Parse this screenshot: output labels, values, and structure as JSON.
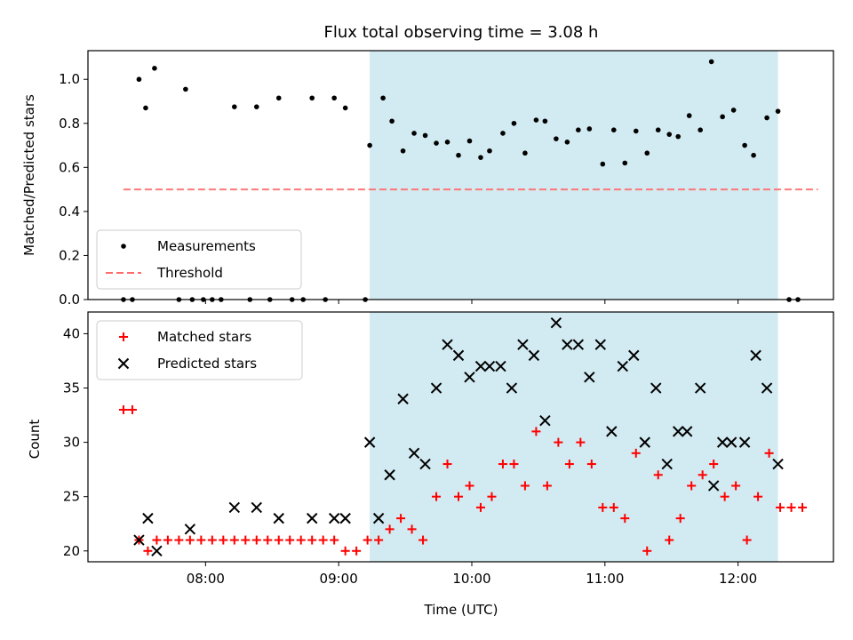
{
  "chart_data": {
    "title": "Flux total observing time = 3.08 h",
    "xlabel": "Time (UTC)",
    "x_ticks": [
      "08:00",
      "09:00",
      "10:00",
      "11:00",
      "12:00"
    ],
    "x_tick_minutes": [
      480,
      540,
      600,
      660,
      720
    ],
    "xlim_minutes": [
      427,
      763
    ],
    "shaded_interval": {
      "start": "09:14",
      "end": "12:18",
      "start_minutes": 554,
      "end_minutes": 738,
      "color": "#add8e6"
    },
    "panels": [
      {
        "type": "scatter",
        "ylabel": "Matched/Predicted stars",
        "ylim": [
          0,
          1.13
        ],
        "y_ticks": [
          "0.0",
          "0.2",
          "0.4",
          "0.6",
          "0.8",
          "1.0"
        ],
        "y_tick_values": [
          0,
          0.2,
          0.4,
          0.6,
          0.8,
          1.0
        ],
        "legend_position": "lower-left",
        "series": [
          {
            "name": "Measurements",
            "marker": "dot",
            "color": "#000000",
            "points": [
              [
                443,
                0
              ],
              [
                447,
                0
              ],
              [
                450,
                1.0
              ],
              [
                453,
                0.87
              ],
              [
                457,
                1.05
              ],
              [
                468,
                0
              ],
              [
                471,
                0.955
              ],
              [
                474,
                0
              ],
              [
                479,
                0
              ],
              [
                483,
                0
              ],
              [
                487,
                0
              ],
              [
                493,
                0.875
              ],
              [
                500,
                0
              ],
              [
                503,
                0.875
              ],
              [
                509,
                0
              ],
              [
                513,
                0.915
              ],
              [
                519,
                0
              ],
              [
                524,
                0
              ],
              [
                528,
                0.915
              ],
              [
                534,
                0
              ],
              [
                538,
                0.915
              ],
              [
                543,
                0.87
              ],
              [
                552,
                0
              ],
              [
                554,
                0.7
              ],
              [
                560,
                0.915
              ],
              [
                564,
                0.81
              ],
              [
                569,
                0.675
              ],
              [
                574,
                0.755
              ],
              [
                579,
                0.745
              ],
              [
                584,
                0.71
              ],
              [
                589,
                0.715
              ],
              [
                594,
                0.655
              ],
              [
                599,
                0.72
              ],
              [
                604,
                0.645
              ],
              [
                608,
                0.675
              ],
              [
                614,
                0.755
              ],
              [
                619,
                0.8
              ],
              [
                624,
                0.665
              ],
              [
                629,
                0.815
              ],
              [
                633,
                0.81
              ],
              [
                638,
                0.73
              ],
              [
                643,
                0.715
              ],
              [
                648,
                0.77
              ],
              [
                653,
                0.775
              ],
              [
                659,
                0.615
              ],
              [
                664,
                0.77
              ],
              [
                669,
                0.62
              ],
              [
                674,
                0.765
              ],
              [
                679,
                0.665
              ],
              [
                684,
                0.77
              ],
              [
                689,
                0.75
              ],
              [
                693,
                0.74
              ],
              [
                698,
                0.835
              ],
              [
                703,
                0.77
              ],
              [
                708,
                1.08
              ],
              [
                713,
                0.83
              ],
              [
                718,
                0.86
              ],
              [
                723,
                0.7
              ],
              [
                727,
                0.655
              ],
              [
                733,
                0.825
              ],
              [
                738,
                0.855
              ],
              [
                743,
                0
              ],
              [
                747,
                0
              ]
            ]
          },
          {
            "name": "Threshold",
            "style": "dashed",
            "color": "#ff6b6b",
            "x_range": [
              443,
              756
            ],
            "value": 0.5
          }
        ]
      },
      {
        "type": "scatter",
        "ylabel": "Count",
        "ylim": [
          19,
          42
        ],
        "y_ticks": [
          "20",
          "25",
          "30",
          "35",
          "40"
        ],
        "y_tick_values": [
          20,
          25,
          30,
          35,
          40
        ],
        "legend_position": "top-left",
        "series": [
          {
            "name": "Matched stars",
            "marker": "plus",
            "color": "#ff0000",
            "points": [
              [
                443,
                33
              ],
              [
                447,
                33
              ],
              [
                450,
                21
              ],
              [
                454,
                20
              ],
              [
                458,
                21
              ],
              [
                463,
                21
              ],
              [
                468,
                21
              ],
              [
                473,
                21
              ],
              [
                478,
                21
              ],
              [
                483,
                21
              ],
              [
                488,
                21
              ],
              [
                493,
                21
              ],
              [
                498,
                21
              ],
              [
                503,
                21
              ],
              [
                508,
                21
              ],
              [
                513,
                21
              ],
              [
                518,
                21
              ],
              [
                523,
                21
              ],
              [
                528,
                21
              ],
              [
                533,
                21
              ],
              [
                538,
                21
              ],
              [
                543,
                20
              ],
              [
                548,
                20
              ],
              [
                553,
                21
              ],
              [
                558,
                21
              ],
              [
                563,
                22
              ],
              [
                568,
                23
              ],
              [
                573,
                22
              ],
              [
                578,
                21
              ],
              [
                584,
                25
              ],
              [
                589,
                28
              ],
              [
                594,
                25
              ],
              [
                599,
                26
              ],
              [
                604,
                24
              ],
              [
                609,
                25
              ],
              [
                614,
                28
              ],
              [
                619,
                28
              ],
              [
                624,
                26
              ],
              [
                629,
                31
              ],
              [
                634,
                26
              ],
              [
                639,
                30
              ],
              [
                644,
                28
              ],
              [
                649,
                30
              ],
              [
                654,
                28
              ],
              [
                659,
                24
              ],
              [
                664,
                24
              ],
              [
                669,
                23
              ],
              [
                674,
                29
              ],
              [
                679,
                20
              ],
              [
                684,
                27
              ],
              [
                689,
                21
              ],
              [
                694,
                23
              ],
              [
                699,
                26
              ],
              [
                704,
                27
              ],
              [
                709,
                28
              ],
              [
                714,
                25
              ],
              [
                719,
                26
              ],
              [
                724,
                21
              ],
              [
                729,
                25
              ],
              [
                734,
                29
              ],
              [
                739,
                24
              ],
              [
                744,
                24
              ],
              [
                749,
                24
              ]
            ]
          },
          {
            "name": "Predicted stars",
            "marker": "x",
            "color": "#000000",
            "points": [
              [
                450,
                21
              ],
              [
                454,
                23
              ],
              [
                458,
                20
              ],
              [
                473,
                22
              ],
              [
                493,
                24
              ],
              [
                503,
                24
              ],
              [
                513,
                23
              ],
              [
                528,
                23
              ],
              [
                538,
                23
              ],
              [
                543,
                23
              ],
              [
                554,
                30
              ],
              [
                558,
                23
              ],
              [
                563,
                27
              ],
              [
                569,
                34
              ],
              [
                574,
                29
              ],
              [
                579,
                28
              ],
              [
                584,
                35
              ],
              [
                589,
                39
              ],
              [
                594,
                38
              ],
              [
                599,
                36
              ],
              [
                604,
                37
              ],
              [
                608,
                37
              ],
              [
                613,
                37
              ],
              [
                618,
                35
              ],
              [
                623,
                39
              ],
              [
                628,
                38
              ],
              [
                633,
                32
              ],
              [
                638,
                41
              ],
              [
                643,
                39
              ],
              [
                648,
                39
              ],
              [
                653,
                36
              ],
              [
                658,
                39
              ],
              [
                663,
                31
              ],
              [
                668,
                37
              ],
              [
                673,
                38
              ],
              [
                678,
                30
              ],
              [
                683,
                35
              ],
              [
                688,
                28
              ],
              [
                693,
                31
              ],
              [
                697,
                31
              ],
              [
                703,
                35
              ],
              [
                709,
                26
              ],
              [
                713,
                30
              ],
              [
                717,
                30
              ],
              [
                723,
                30
              ],
              [
                728,
                38
              ],
              [
                733,
                35
              ],
              [
                738,
                28
              ]
            ]
          }
        ]
      }
    ]
  }
}
